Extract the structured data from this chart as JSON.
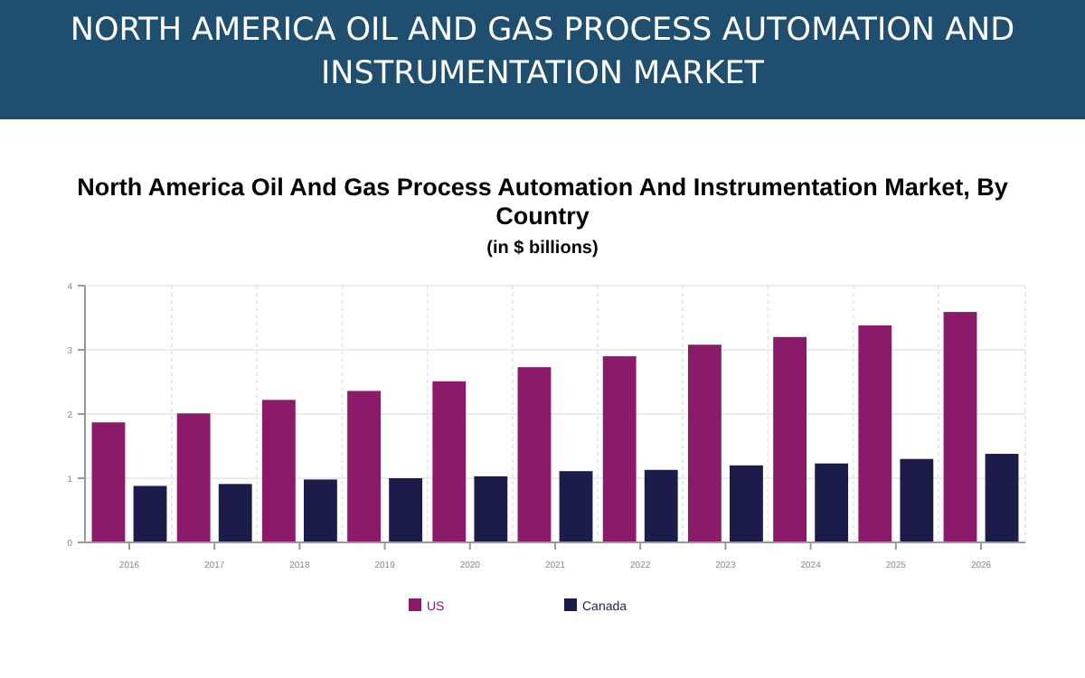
{
  "chart_data": {
    "type": "bar",
    "title": "NORTH AMERICA OIL AND GAS PROCESS AUTOMATION AND INSTRUMENTATION MARKET",
    "subtitle": "North America Oil And Gas Process Automation And Instrumentation Market, By Country",
    "annotations": [
      "(in $ billions)"
    ],
    "categories": [
      "2016",
      "2017",
      "2018",
      "2019",
      "2020",
      "2021",
      "2022",
      "2023",
      "2024",
      "2025",
      "2026"
    ],
    "series": [
      {
        "name": "US",
        "color": "#8b1a6b",
        "values": [
          1.87,
          2.01,
          2.22,
          2.36,
          2.51,
          2.73,
          2.9,
          3.08,
          3.2,
          3.38,
          3.59
        ]
      },
      {
        "name": "Canada",
        "color": "#1c1c4a",
        "values": [
          0.88,
          0.91,
          0.98,
          1.0,
          1.03,
          1.11,
          1.13,
          1.2,
          1.23,
          1.3,
          1.38
        ]
      }
    ],
    "ylim": [
      0,
      4
    ],
    "yticks": [
      0,
      1,
      2,
      3,
      4
    ],
    "grid": true,
    "legend": "bottom"
  }
}
